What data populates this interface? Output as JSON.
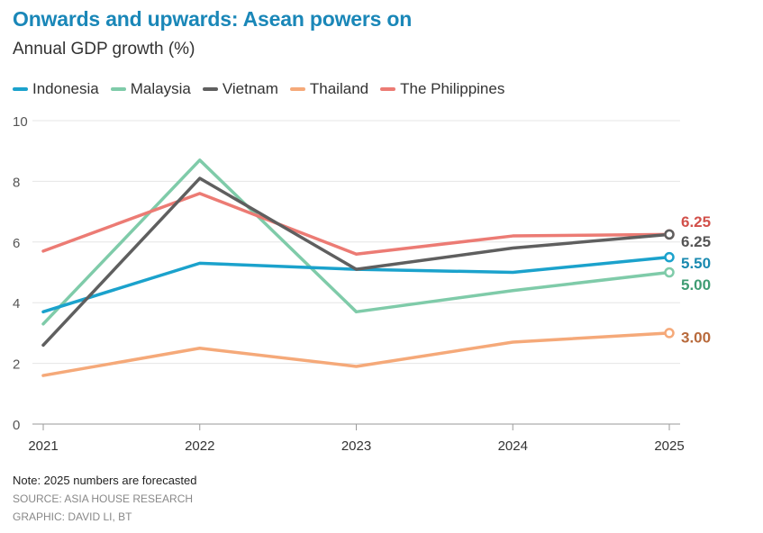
{
  "header": {
    "title": "Onwards and upwards: Asean powers on",
    "subtitle": "Annual GDP growth (%)"
  },
  "chart_data": {
    "type": "line",
    "title": "Onwards and upwards: Asean powers on",
    "subtitle": "Annual GDP growth (%)",
    "xlabel": "",
    "ylabel": "Annual GDP growth (%)",
    "x": [
      "2021",
      "2022",
      "2023",
      "2024",
      "2025"
    ],
    "ylim": [
      0,
      10
    ],
    "yticks": [
      0,
      2,
      4,
      6,
      8,
      10
    ],
    "grid": true,
    "legend_position": "top-left",
    "series": [
      {
        "name": "Indonesia",
        "color": "#1ba2cc",
        "label_color": "#1a8ab0",
        "values": [
          3.7,
          5.3,
          5.1,
          5.0,
          5.5
        ],
        "end_label": "5.50"
      },
      {
        "name": "Malaysia",
        "color": "#7fcba9",
        "label_color": "#3f9c73",
        "values": [
          3.3,
          8.7,
          3.7,
          4.4,
          5.0
        ],
        "end_label": "5.00"
      },
      {
        "name": "Vietnam",
        "color": "#5f5f5f",
        "label_color": "#555555",
        "values": [
          2.6,
          8.1,
          5.1,
          5.8,
          6.25
        ],
        "end_label": "6.25"
      },
      {
        "name": "Thailand",
        "color": "#f5a979",
        "label_color": "#b86a3c",
        "values": [
          1.6,
          2.5,
          1.9,
          2.7,
          3.0
        ],
        "end_label": "3.00"
      },
      {
        "name": "The Philippines",
        "color": "#ec7b74",
        "label_color": "#d2504a",
        "values": [
          5.7,
          7.6,
          5.6,
          6.2,
          6.25
        ],
        "end_label": "6.25"
      }
    ]
  },
  "footer": {
    "note": "Note: 2025 numbers are forecasted",
    "source": "SOURCE: ASIA HOUSE RESEARCH",
    "credit": "GRAPHIC: DAVID LI, BT"
  }
}
